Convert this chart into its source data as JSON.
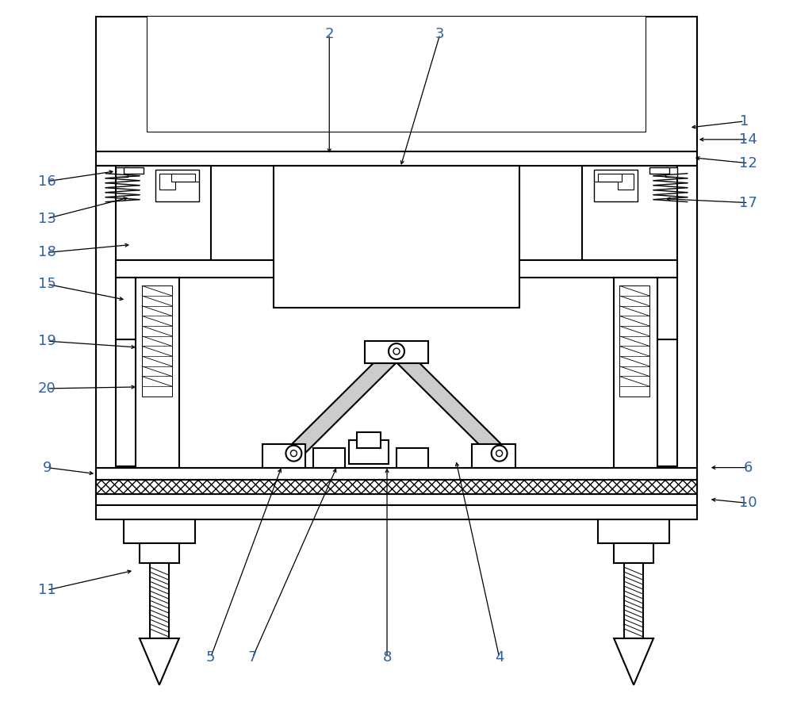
{
  "bg_color": "#ffffff",
  "line_color": "#000000",
  "lw": 1.5,
  "fig_width": 10.0,
  "fig_height": 9.18,
  "label_color": "#3060a0",
  "label_fontsize": 13,
  "annotations": [
    [
      "1",
      940,
      152,
      870,
      160
    ],
    [
      "2",
      415,
      42,
      415,
      195
    ],
    [
      "3",
      555,
      42,
      505,
      210
    ],
    [
      "4",
      630,
      830,
      575,
      580
    ],
    [
      "5",
      265,
      830,
      355,
      588
    ],
    [
      "6",
      945,
      590,
      895,
      590
    ],
    [
      "7",
      318,
      830,
      425,
      588
    ],
    [
      "8",
      488,
      830,
      488,
      588
    ],
    [
      "9",
      58,
      590,
      120,
      598
    ],
    [
      "10",
      945,
      635,
      895,
      630
    ],
    [
      "11",
      58,
      745,
      168,
      720
    ],
    [
      "12",
      945,
      205,
      875,
      198
    ],
    [
      "13",
      58,
      275,
      163,
      248
    ],
    [
      "14",
      945,
      175,
      880,
      175
    ],
    [
      "15",
      58,
      358,
      158,
      378
    ],
    [
      "16",
      58,
      228,
      145,
      215
    ],
    [
      "17",
      945,
      255,
      838,
      250
    ],
    [
      "18",
      58,
      318,
      165,
      308
    ],
    [
      "19",
      58,
      430,
      173,
      438
    ],
    [
      "20",
      58,
      490,
      173,
      488
    ]
  ]
}
